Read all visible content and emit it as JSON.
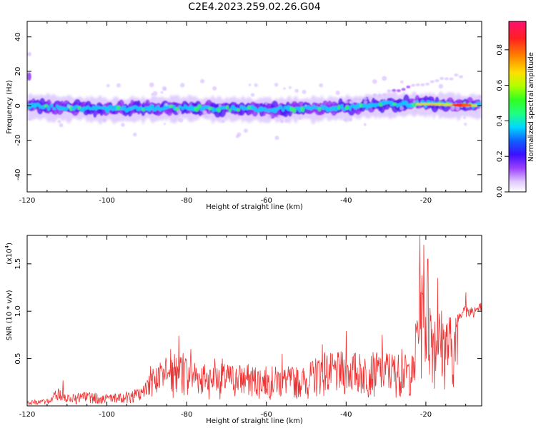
{
  "title": "C2E4.2023.259.02.26.G04",
  "colorbar": {
    "label": "Normalized spectral amplitude",
    "ticks": [
      "0.0",
      "0.2",
      "0.4",
      "0.6",
      "0.8"
    ],
    "tick_values": [
      0.0,
      0.2,
      0.4,
      0.6,
      0.8
    ],
    "range": [
      0,
      0.96
    ]
  },
  "chart_data": [
    {
      "type": "heatmap",
      "xlabel": "Height of straight line (km)",
      "ylabel": "Frequency (Hz)",
      "xlim": [
        -120,
        -6
      ],
      "ylim": [
        -50,
        49
      ],
      "x_ticks": [
        -120,
        -100,
        -80,
        -60,
        -40,
        -20
      ],
      "x_tick_labels": [
        "-120",
        "-100",
        "-80",
        "-60",
        "-40",
        "-20"
      ],
      "y_ticks": [
        -40,
        -20,
        0,
        20,
        40
      ],
      "y_tick_labels": [
        "-40",
        "-20",
        "0",
        "20",
        "40"
      ],
      "band": {
        "center_hz": [
          [
            -120,
            0
          ],
          [
            -100,
            -2
          ],
          [
            -80,
            -1
          ],
          [
            -60,
            -2
          ],
          [
            -40,
            -1
          ],
          [
            -30,
            1
          ],
          [
            -20,
            1
          ],
          [
            -6,
            0
          ]
        ],
        "half_width_hz": 6,
        "peak_amplitude_km": -10
      }
    },
    {
      "type": "line",
      "xlabel": "Height of straight line (km)",
      "ylabel": "SNR (10 * v/v)",
      "y_exponent_label": "(x10",
      "y_exponent": "4",
      "xlim": [
        -120,
        -6
      ],
      "ylim": [
        0,
        1.8
      ],
      "x_ticks": [
        -120,
        -100,
        -80,
        -60,
        -40,
        -20
      ],
      "x_tick_labels": [
        "-120",
        "-100",
        "-80",
        "-60",
        "-40",
        "-20"
      ],
      "y_ticks": [
        0.5,
        1.0,
        1.5
      ],
      "y_tick_labels": [
        "0.5",
        "1.0",
        "1.5"
      ],
      "line_color": "#ee3333",
      "envelope": [
        [
          -120,
          0.06
        ],
        [
          -115,
          0.07
        ],
        [
          -112,
          0.2
        ],
        [
          -110,
          0.12
        ],
        [
          -105,
          0.15
        ],
        [
          -100,
          0.12
        ],
        [
          -95,
          0.15
        ],
        [
          -91,
          0.2
        ],
        [
          -89,
          0.38
        ],
        [
          -86,
          0.5
        ],
        [
          -82,
          0.58
        ],
        [
          -80,
          0.55
        ],
        [
          -75,
          0.45
        ],
        [
          -70,
          0.45
        ],
        [
          -65,
          0.45
        ],
        [
          -60,
          0.42
        ],
        [
          -55,
          0.42
        ],
        [
          -50,
          0.42
        ],
        [
          -46,
          0.6
        ],
        [
          -43,
          0.55
        ],
        [
          -40,
          0.6
        ],
        [
          -35,
          0.55
        ],
        [
          -30,
          0.6
        ],
        [
          -26,
          0.55
        ],
        [
          -23,
          0.55
        ],
        [
          -22,
          1.4
        ],
        [
          -20,
          1.5
        ],
        [
          -18,
          1.1
        ],
        [
          -16,
          1.05
        ],
        [
          -13,
          0.95
        ],
        [
          -11,
          1.05
        ],
        [
          -9,
          1.05
        ],
        [
          -6,
          1.08
        ]
      ],
      "spikes": [
        [
          -111,
          0.27
        ],
        [
          -89,
          0.42
        ],
        [
          -84,
          0.6
        ],
        [
          -82,
          0.74
        ],
        [
          -79,
          0.6
        ],
        [
          -73,
          0.5
        ],
        [
          -71,
          0.5
        ],
        [
          -56,
          0.55
        ],
        [
          -46,
          0.65
        ],
        [
          -40,
          0.79
        ],
        [
          -31,
          0.75
        ],
        [
          -26,
          0.6
        ],
        [
          -21.5,
          1.8
        ],
        [
          -20.5,
          1.7
        ],
        [
          -19.5,
          1.55
        ],
        [
          -17,
          1.35
        ],
        [
          -10,
          1.2
        ]
      ]
    }
  ]
}
